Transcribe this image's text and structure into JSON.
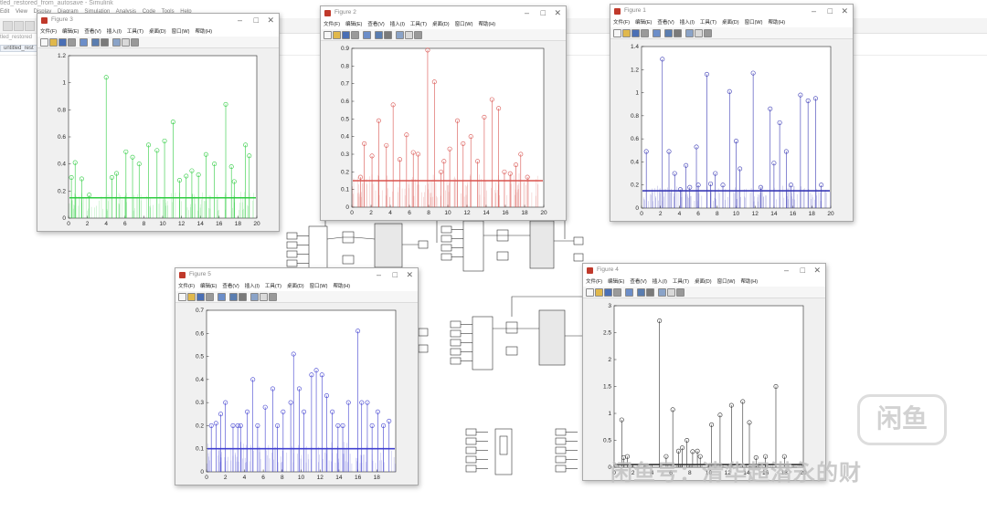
{
  "simulink": {
    "title": "tled_restored_from_autosave - Simulink",
    "menu": [
      "Edit",
      "View",
      "Display",
      "Diagram",
      "Simulation",
      "Analysis",
      "Code",
      "Tools",
      "Help"
    ],
    "breadcrumb": "tled_restored",
    "model_tab": "untitled_rest"
  },
  "figure_menu": [
    "文件(F)",
    "编辑(E)",
    "查看(V)",
    "插入(I)",
    "工具(T)",
    "桌面(D)",
    "窗口(W)",
    "帮助(H)"
  ],
  "figures": [
    {
      "title": "Figure 3",
      "color": "#2ecc40",
      "chart_data": {
        "type": "stem",
        "title": "",
        "xlabel": "",
        "ylabel": "",
        "xlim": [
          0,
          20
        ],
        "ylim": [
          0,
          1.2
        ],
        "xticks": [
          0,
          2,
          4,
          6,
          8,
          10,
          12,
          14,
          16,
          18,
          20
        ],
        "yticks": [
          0,
          0.2,
          0.4,
          0.6,
          0.8,
          1,
          1.2
        ],
        "baseline": 0.15,
        "points": [
          [
            0.3,
            0.3
          ],
          [
            0.7,
            0.41
          ],
          [
            1.4,
            0.29
          ],
          [
            2.2,
            0.17
          ],
          [
            4.0,
            1.04
          ],
          [
            4.6,
            0.3
          ],
          [
            5.1,
            0.33
          ],
          [
            6.1,
            0.49
          ],
          [
            6.8,
            0.45
          ],
          [
            7.5,
            0.4
          ],
          [
            8.5,
            0.54
          ],
          [
            9.4,
            0.5
          ],
          [
            10.2,
            0.57
          ],
          [
            11.1,
            0.71
          ],
          [
            11.8,
            0.28
          ],
          [
            12.5,
            0.31
          ],
          [
            13.1,
            0.35
          ],
          [
            13.8,
            0.32
          ],
          [
            14.6,
            0.47
          ],
          [
            15.5,
            0.4
          ],
          [
            16.7,
            0.84
          ],
          [
            17.3,
            0.38
          ],
          [
            17.6,
            0.27
          ],
          [
            18.8,
            0.54
          ],
          [
            19.2,
            0.46
          ]
        ]
      }
    },
    {
      "title": "Figure 2",
      "color": "#d9534f",
      "chart_data": {
        "type": "stem",
        "title": "",
        "xlabel": "",
        "ylabel": "",
        "xlim": [
          0,
          20
        ],
        "ylim": [
          0,
          0.9
        ],
        "xticks": [
          0,
          2,
          4,
          6,
          8,
          10,
          12,
          14,
          16,
          18,
          20
        ],
        "yticks": [
          0,
          0.1,
          0.2,
          0.3,
          0.4,
          0.5,
          0.6,
          0.7,
          0.8,
          0.9
        ],
        "baseline": 0.15,
        "points": [
          [
            0.9,
            0.17
          ],
          [
            1.3,
            0.36
          ],
          [
            2.1,
            0.29
          ],
          [
            2.8,
            0.49
          ],
          [
            3.6,
            0.35
          ],
          [
            4.3,
            0.58
          ],
          [
            5.0,
            0.27
          ],
          [
            5.7,
            0.41
          ],
          [
            6.4,
            0.31
          ],
          [
            6.9,
            0.3
          ],
          [
            7.9,
            0.89
          ],
          [
            8.6,
            0.71
          ],
          [
            9.3,
            0.2
          ],
          [
            9.6,
            0.26
          ],
          [
            10.2,
            0.33
          ],
          [
            11.0,
            0.49
          ],
          [
            11.6,
            0.36
          ],
          [
            12.4,
            0.4
          ],
          [
            13.1,
            0.26
          ],
          [
            13.8,
            0.51
          ],
          [
            14.6,
            0.61
          ],
          [
            15.3,
            0.56
          ],
          [
            15.9,
            0.2
          ],
          [
            16.5,
            0.19
          ],
          [
            17.1,
            0.24
          ],
          [
            17.6,
            0.3
          ],
          [
            18.3,
            0.17
          ]
        ]
      }
    },
    {
      "title": "Figure 1",
      "color": "#3a3ab5",
      "chart_data": {
        "type": "stem",
        "title": "",
        "xlabel": "",
        "ylabel": "",
        "xlim": [
          0,
          20
        ],
        "ylim": [
          0,
          1.4
        ],
        "xticks": [
          0,
          2,
          4,
          6,
          8,
          10,
          12,
          14,
          16,
          18,
          20
        ],
        "yticks": [
          0,
          0.2,
          0.4,
          0.6,
          0.8,
          1,
          1.2,
          1.4
        ],
        "baseline": 0.15,
        "points": [
          [
            0.5,
            0.49
          ],
          [
            2.2,
            1.29
          ],
          [
            2.9,
            0.49
          ],
          [
            3.5,
            0.3
          ],
          [
            4.1,
            0.16
          ],
          [
            4.7,
            0.37
          ],
          [
            5.1,
            0.18
          ],
          [
            5.8,
            0.53
          ],
          [
            6.0,
            0.2
          ],
          [
            6.9,
            1.16
          ],
          [
            7.3,
            0.21
          ],
          [
            7.8,
            0.3
          ],
          [
            8.6,
            0.2
          ],
          [
            9.3,
            1.01
          ],
          [
            10.0,
            0.58
          ],
          [
            10.4,
            0.34
          ],
          [
            11.8,
            1.17
          ],
          [
            12.6,
            0.18
          ],
          [
            13.6,
            0.86
          ],
          [
            14.0,
            0.39
          ],
          [
            14.6,
            0.74
          ],
          [
            15.3,
            0.49
          ],
          [
            15.8,
            0.2
          ],
          [
            16.8,
            0.98
          ],
          [
            17.6,
            0.93
          ],
          [
            18.4,
            0.95
          ],
          [
            19.0,
            0.2
          ]
        ]
      }
    },
    {
      "title": "Figure 5",
      "color": "#4040d0",
      "chart_data": {
        "type": "stem",
        "title": "",
        "xlabel": "",
        "ylabel": "",
        "xlim": [
          0,
          20
        ],
        "ylim": [
          0,
          0.7
        ],
        "xticks": [
          0,
          2,
          4,
          6,
          8,
          10,
          12,
          14,
          16,
          18
        ],
        "yticks": [
          0,
          0.1,
          0.2,
          0.3,
          0.4,
          0.5,
          0.6,
          0.7
        ],
        "baseline": 0.1,
        "points": [
          [
            0.5,
            0.2
          ],
          [
            1.0,
            0.21
          ],
          [
            1.5,
            0.25
          ],
          [
            2.0,
            0.3
          ],
          [
            2.8,
            0.2
          ],
          [
            3.3,
            0.2
          ],
          [
            3.6,
            0.2
          ],
          [
            4.3,
            0.26
          ],
          [
            4.9,
            0.4
          ],
          [
            5.4,
            0.2
          ],
          [
            6.2,
            0.28
          ],
          [
            7.0,
            0.36
          ],
          [
            7.5,
            0.2
          ],
          [
            8.1,
            0.26
          ],
          [
            8.9,
            0.3
          ],
          [
            9.2,
            0.51
          ],
          [
            9.8,
            0.36
          ],
          [
            10.3,
            0.26
          ],
          [
            11.1,
            0.42
          ],
          [
            11.6,
            0.44
          ],
          [
            12.2,
            0.42
          ],
          [
            12.7,
            0.33
          ],
          [
            13.3,
            0.26
          ],
          [
            13.9,
            0.2
          ],
          [
            14.4,
            0.2
          ],
          [
            15.0,
            0.3
          ],
          [
            16.0,
            0.61
          ],
          [
            16.4,
            0.3
          ],
          [
            17.0,
            0.3
          ],
          [
            17.5,
            0.2
          ],
          [
            18.1,
            0.26
          ],
          [
            18.7,
            0.2
          ],
          [
            19.3,
            0.22
          ]
        ]
      }
    },
    {
      "title": "Figure 4",
      "color": "#333333",
      "chart_data": {
        "type": "stem",
        "title": "",
        "xlabel": "",
        "ylabel": "",
        "xlim": [
          0,
          20
        ],
        "ylim": [
          0,
          3
        ],
        "xticks": [
          0,
          2,
          4,
          6,
          8,
          10,
          12,
          14,
          16,
          18,
          20
        ],
        "yticks": [
          0,
          0.5,
          1,
          1.5,
          2,
          2.5,
          3
        ],
        "baseline": 0.05,
        "points": [
          [
            0.8,
            0.88
          ],
          [
            1.0,
            0.18
          ],
          [
            1.4,
            0.2
          ],
          [
            4.8,
            2.72
          ],
          [
            5.5,
            0.2
          ],
          [
            6.2,
            1.07
          ],
          [
            6.8,
            0.3
          ],
          [
            7.2,
            0.36
          ],
          [
            7.7,
            0.5
          ],
          [
            8.3,
            0.29
          ],
          [
            8.8,
            0.3
          ],
          [
            9.1,
            0.2
          ],
          [
            10.3,
            0.79
          ],
          [
            11.2,
            0.97
          ],
          [
            12.4,
            1.15
          ],
          [
            13.6,
            1.22
          ],
          [
            14.3,
            0.83
          ],
          [
            15.0,
            0.18
          ],
          [
            16.0,
            0.2
          ],
          [
            17.1,
            1.5
          ],
          [
            18.0,
            0.2
          ]
        ]
      }
    }
  ],
  "watermark": {
    "logo_text": "闲鱼",
    "text": "闲鱼号：清华超潜永的财"
  }
}
